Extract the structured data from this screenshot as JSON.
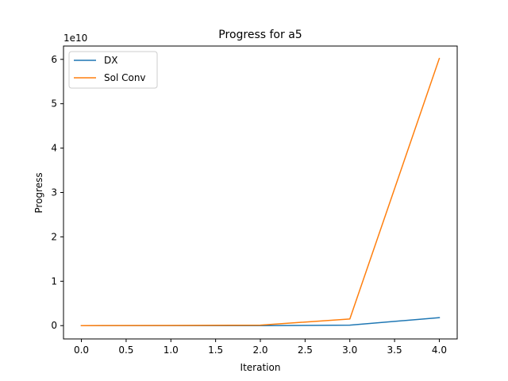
{
  "chart_data": {
    "type": "line",
    "title": "Progress for a5",
    "xlabel": "Iteration",
    "ylabel": "Progress",
    "y_scale_label": "1e10",
    "x": [
      0,
      1,
      2,
      3,
      4
    ],
    "xlim": [
      -0.2,
      4.2
    ],
    "ylim": [
      -0.3,
      6.3
    ],
    "x_ticks": [
      0.0,
      0.5,
      1.0,
      1.5,
      2.0,
      2.5,
      3.0,
      3.5,
      4.0
    ],
    "x_tick_labels": [
      "0.0",
      "0.5",
      "1.0",
      "1.5",
      "2.0",
      "2.5",
      "3.0",
      "3.5",
      "4.0"
    ],
    "y_ticks": [
      0,
      1,
      2,
      3,
      4,
      5,
      6
    ],
    "y_tick_labels": [
      "0",
      "1",
      "2",
      "3",
      "4",
      "5",
      "6"
    ],
    "grid": false,
    "legend_position": "top-left",
    "series": [
      {
        "name": "DX",
        "color": "#1f77b4",
        "values": [
          0,
          0,
          0,
          0.01,
          0.18
        ]
      },
      {
        "name": "Sol Conv",
        "color": "#ff7f0e",
        "values": [
          0,
          0.005,
          0.01,
          0.15,
          6.02
        ]
      }
    ]
  }
}
